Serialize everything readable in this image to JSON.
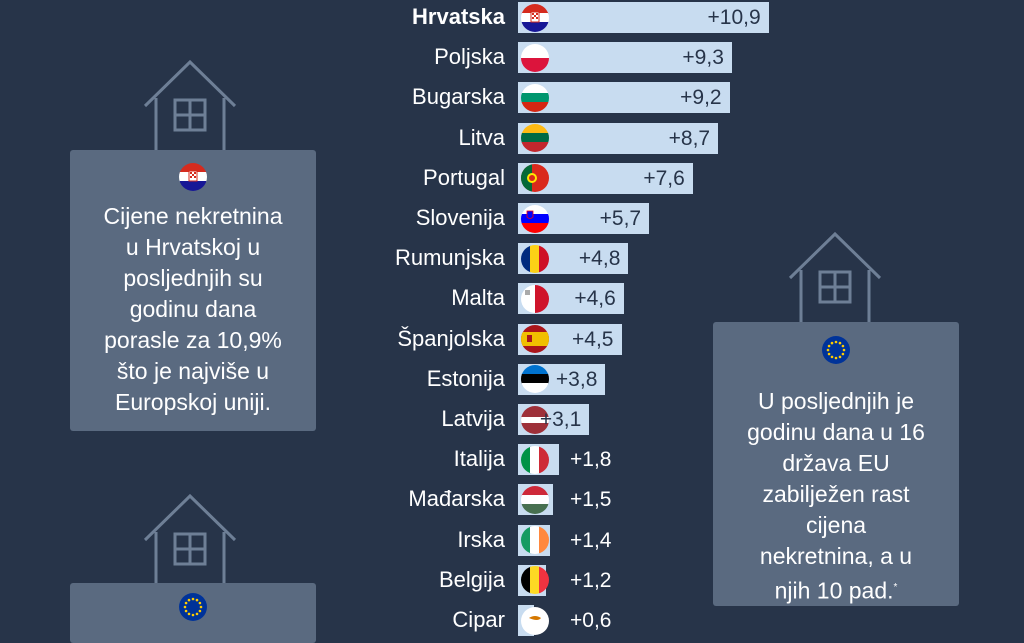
{
  "chart_data": {
    "type": "bar",
    "orientation": "horizontal",
    "unit": "%",
    "categories": [
      "Hrvatska",
      "Poljska",
      "Bugarska",
      "Litva",
      "Portugal",
      "Slovenija",
      "Rumunjska",
      "Malta",
      "Španjolska",
      "Estonija",
      "Latvija",
      "Italija",
      "Mađarska",
      "Irska",
      "Belgija",
      "Cipar"
    ],
    "values": [
      10.9,
      9.3,
      9.2,
      8.7,
      7.6,
      5.7,
      4.8,
      4.6,
      4.5,
      3.8,
      3.1,
      1.8,
      1.5,
      1.4,
      1.2,
      0.6
    ],
    "labels": [
      "+10,9",
      "+9,3",
      "+9,2",
      "+8,7",
      "+7,6",
      "+5,7",
      "+4,8",
      "+4,6",
      "+4,5",
      "+3,8",
      "+3,1",
      "+1,8",
      "+1,5",
      "+1,4",
      "+1,2",
      "+0,6"
    ],
    "flags": [
      "croatia-flag",
      "poland-flag",
      "bulgaria-flag",
      "lithuania-flag",
      "portugal-flag",
      "slovenia-flag",
      "romania-flag",
      "malta-flag",
      "spain-flag",
      "estonia-flag",
      "latvia-flag",
      "italy-flag",
      "hungary-flag",
      "ireland-flag",
      "belgium-flag",
      "cyprus-flag"
    ],
    "bar_color": "#c8dcf0"
  },
  "cards": {
    "croatia": {
      "flag": "croatia-flag",
      "lines": [
        "Cijene nekretnina",
        "u Hrvatskoj u",
        "posljednjih su",
        "godinu dana",
        "porasle za 10,9%",
        "što je najviše u",
        "Europskoj uniji."
      ]
    },
    "eu": {
      "flag": "eu-flag",
      "lines": [
        "U posljednjih je",
        "godinu dana u 16",
        "država EU",
        "zabilježen rast",
        "cijena",
        "nekretnina, a u",
        "njih 10 pad."
      ],
      "footnote_mark": "*"
    },
    "bottom": {
      "flag": "eu-flag"
    }
  },
  "colors": {
    "background": "#273449",
    "card": "#5a6a80",
    "house_stroke": "#6e7f96"
  }
}
